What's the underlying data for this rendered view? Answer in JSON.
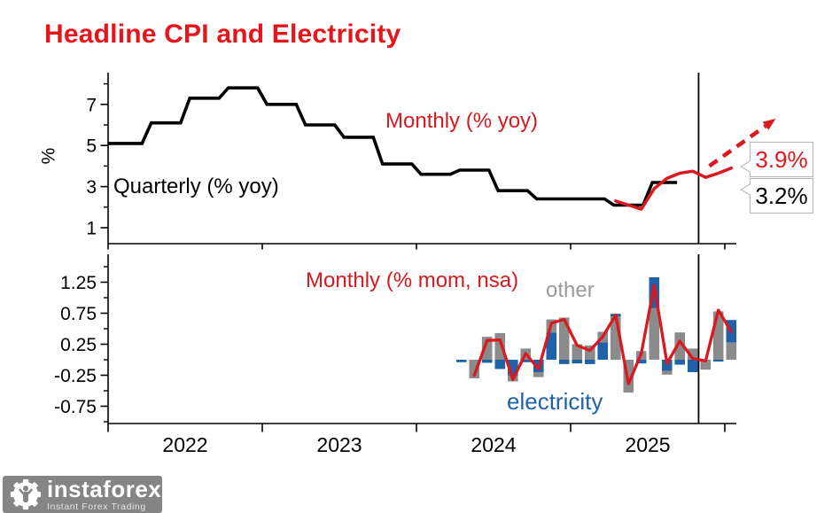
{
  "title": "Headline CPI and Electricity",
  "colors": {
    "title_red": "#e8141b",
    "red": "#d9191f",
    "blue": "#1f62a8",
    "gray_bar": "#8b8b8b",
    "gray_label": "#9a9a9a",
    "black": "#000000",
    "callout_border": "#b5b5b5",
    "logo_bg": "#858585"
  },
  "callouts": {
    "monthly_forecast": "3.9%",
    "quarterly_latest": "3.2%"
  },
  "logo": {
    "brand": "instaforex",
    "tagline": "Instant Forex Trading"
  },
  "chart_data": [
    {
      "type": "line",
      "panel": "top",
      "ylabel": "%",
      "yticks": [
        1,
        3,
        5,
        7
      ],
      "yticks_minor": [
        2,
        4,
        6,
        8
      ],
      "ylim": [
        0.25,
        8.5
      ],
      "xlim": [
        2022.0,
        2026.07
      ],
      "xticks_years": [
        2022,
        2023,
        2024,
        2025,
        2026
      ],
      "grid": false,
      "vline_x": 2025.83,
      "labels": {
        "quarterly": "Quarterly (% yoy)",
        "monthly": "Monthly (% yoy)"
      },
      "series": [
        {
          "name": "Quarterly (% yoy)",
          "color": "black",
          "style": "step-quarter",
          "quarters": [
            "2022Q1",
            "2022Q2",
            "2022Q3",
            "2022Q4",
            "2023Q1",
            "2023Q2",
            "2023Q3",
            "2023Q4",
            "2024Q1",
            "2024Q2",
            "2024Q3",
            "2024Q4",
            "2025Q1",
            "2025Q2",
            "2025Q3"
          ],
          "values": [
            5.1,
            6.1,
            7.3,
            7.8,
            7.0,
            6.0,
            5.4,
            4.1,
            3.6,
            3.8,
            2.8,
            2.4,
            2.4,
            2.1,
            3.2
          ]
        },
        {
          "name": "Monthly (% yoy)",
          "color": "red",
          "style": "line",
          "months": [
            "2025-04",
            "2025-05",
            "2025-06",
            "2025-07",
            "2025-08",
            "2025-09",
            "2025-10",
            "2025-11",
            "2025-12",
            "2026-01"
          ],
          "values": [
            2.3,
            2.1,
            1.9,
            2.9,
            3.4,
            3.65,
            3.75,
            3.45,
            3.65,
            3.9
          ]
        }
      ],
      "forecast_arrow": {
        "from_x": 2025.9,
        "from_y": 4.0,
        "to_x": 2026.33,
        "to_y": 6.3,
        "style": "dashed"
      }
    },
    {
      "type": "bar",
      "panel": "bottom",
      "title": "Monthly (% mom, nsa)",
      "legend": {
        "other": "other",
        "electricity": "electricity"
      },
      "yticks": [
        1.25,
        0.75,
        0.25,
        -0.25,
        -0.75
      ],
      "yticks_minor": [
        1.5,
        1.0,
        0.5,
        0.0,
        -0.5,
        -1.0
      ],
      "ylim": [
        -1.03,
        1.7
      ],
      "xlim": [
        2022.0,
        2026.07
      ],
      "xticks_years": [
        2022,
        2023,
        2024,
        2025,
        2026
      ],
      "xtick_labels": [
        "2022",
        "2023",
        "2024",
        "2025"
      ],
      "vline_x": 2025.83,
      "months": [
        "2024-04",
        "2024-05",
        "2024-06",
        "2024-07",
        "2024-08",
        "2024-09",
        "2024-10",
        "2024-11",
        "2024-12",
        "2025-01",
        "2025-02",
        "2025-03",
        "2025-04",
        "2025-05",
        "2025-06",
        "2025-07",
        "2025-08",
        "2025-09",
        "2025-10",
        "2025-11",
        "2025-12",
        "2026-01"
      ],
      "bars": [
        {
          "segments": [
            [
              "electricity",
              -0.04
            ]
          ]
        },
        {
          "segments": [
            [
              "other",
              -0.3
            ]
          ]
        },
        {
          "segments": [
            [
              "other",
              0.37
            ],
            [
              "electricity",
              -0.05
            ]
          ]
        },
        {
          "segments": [
            [
              "other",
              0.43
            ],
            [
              "electricity",
              -0.15
            ]
          ]
        },
        {
          "segments": [
            [
              "electricity",
              -0.25
            ],
            [
              "other",
              -0.1
            ]
          ]
        },
        {
          "segments": [
            [
              "other",
              0.18
            ],
            [
              "electricity",
              -0.04
            ]
          ]
        },
        {
          "segments": [
            [
              "electricity",
              -0.2
            ],
            [
              "other",
              -0.08
            ]
          ]
        },
        {
          "segments": [
            [
              "electricity",
              0.44
            ],
            [
              "other",
              0.21
            ]
          ]
        },
        {
          "segments": [
            [
              "other",
              0.68
            ],
            [
              "electricity",
              -0.07
            ]
          ]
        },
        {
          "segments": [
            [
              "other",
              0.25
            ],
            [
              "electricity",
              -0.06
            ]
          ]
        },
        {
          "segments": [
            [
              "other",
              0.23
            ],
            [
              "electricity",
              -0.07
            ]
          ]
        },
        {
          "segments": [
            [
              "electricity",
              0.28
            ],
            [
              "other",
              0.17
            ]
          ]
        },
        {
          "segments": [
            [
              "other",
              0.7
            ],
            [
              "electricity",
              0.04
            ]
          ]
        },
        {
          "segments": [
            [
              "other",
              -0.53
            ]
          ]
        },
        {
          "segments": [
            [
              "other",
              0.14
            ],
            [
              "electricity",
              -0.06
            ]
          ]
        },
        {
          "segments": [
            [
              "other",
              0.83
            ],
            [
              "electricity",
              0.5
            ]
          ]
        },
        {
          "segments": [
            [
              "electricity",
              -0.18
            ],
            [
              "other",
              -0.06
            ]
          ]
        },
        {
          "segments": [
            [
              "other",
              0.44
            ],
            [
              "electricity",
              -0.08
            ]
          ]
        },
        {
          "segments": [
            [
              "other",
              0.18
            ],
            [
              "electricity",
              -0.2
            ]
          ]
        },
        {
          "segments": [
            [
              "other",
              -0.16
            ]
          ]
        },
        {
          "segments": [
            [
              "other",
              0.78
            ],
            [
              "electricity",
              -0.03
            ]
          ]
        },
        {
          "segments": [
            [
              "other",
              0.28
            ],
            [
              "electricity",
              0.36
            ]
          ]
        }
      ],
      "total_line": {
        "name": "headline mom",
        "color": "red",
        "start_month": "2024-05",
        "values": [
          -0.25,
          0.31,
          0.32,
          -0.32,
          0.1,
          -0.15,
          0.59,
          0.65,
          0.23,
          0.15,
          0.37,
          0.72,
          -0.39,
          0.1,
          1.2,
          -0.06,
          0.3,
          0.02,
          -0.02,
          0.8,
          0.45
        ]
      }
    }
  ]
}
